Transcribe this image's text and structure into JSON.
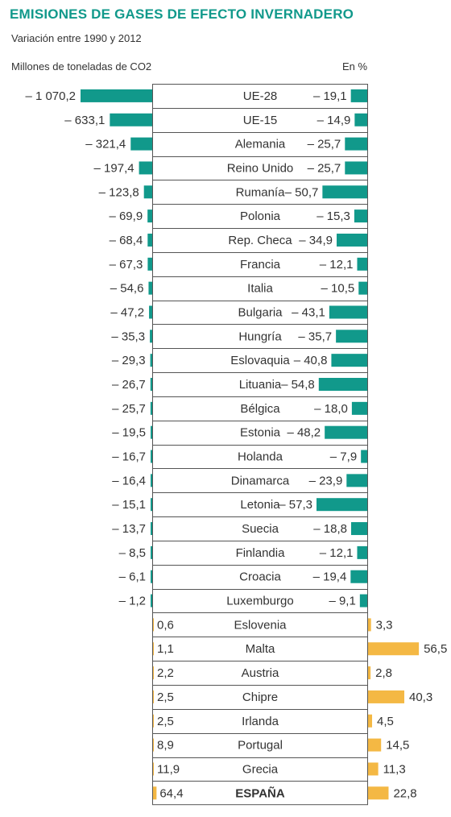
{
  "title": "EMISIONES DE GASES DE EFECTO INVERNADERO",
  "subtitle": "Variación  entre 1990 y 2012",
  "left_header": "Millones de toneladas de CO2",
  "right_header": "En %",
  "colors": {
    "title": "#11998b",
    "negative": "#11998b",
    "positive": "#f4b844",
    "text": "#333333",
    "box_border": "#555555"
  },
  "chart_data": {
    "type": "bar",
    "title": "EMISIONES DE GASES DE EFECTO INVERNADERO",
    "subtitle": "Variación  entre 1990 y 2012",
    "categories": [
      "UE-28",
      "UE-15",
      "Alemania",
      "Reino Unido",
      "Rumanía",
      "Polonia",
      "Rep. Checa",
      "Francia",
      "Italia",
      "Bulgaria",
      "Hungría",
      "Eslovaquia",
      "Lituania",
      "Bélgica",
      "Estonia",
      "Holanda",
      "Dinamarca",
      "Letonia",
      "Suecia",
      "Finlandia",
      "Croacia",
      "Luxemburgo",
      "Eslovenia",
      "Malta",
      "Austria",
      "Chipre",
      "Irlanda",
      "Portugal",
      "Grecia",
      "ESPAÑA"
    ],
    "series": [
      {
        "name": "Millones de toneladas de CO2",
        "values": [
          -1070.2,
          -633.1,
          -321.4,
          -197.4,
          -123.8,
          -69.9,
          -68.4,
          -67.3,
          -54.6,
          -47.2,
          -35.3,
          -29.3,
          -26.7,
          -25.7,
          -19.5,
          -16.7,
          -16.4,
          -15.1,
          -13.7,
          -8.5,
          -6.1,
          -1.2,
          0.6,
          1.1,
          2.2,
          2.5,
          2.5,
          8.9,
          11.9,
          64.4
        ],
        "labels": [
          "– 1 070,2",
          "– 633,1",
          "– 321,4",
          "– 197,4",
          "– 123,8",
          "– 69,9",
          "– 68,4",
          "– 67,3",
          "– 54,6",
          "– 47,2",
          "– 35,3",
          "– 29,3",
          "– 26,7",
          "– 25,7",
          "– 19,5",
          "– 16,7",
          "– 16,4",
          "– 15,1",
          "– 13,7",
          "– 8,5",
          "– 6,1",
          "– 1,2",
          "0,6",
          "1,1",
          "2,2",
          "2,5",
          "2,5",
          "8,9",
          "11,9",
          "64,4"
        ]
      },
      {
        "name": "En %",
        "values": [
          -19.1,
          -14.9,
          -25.7,
          -25.7,
          -50.7,
          -15.3,
          -34.9,
          -12.1,
          -10.5,
          -43.1,
          -35.7,
          -40.8,
          -54.8,
          -18.0,
          -48.2,
          -7.9,
          -23.9,
          -57.3,
          -18.8,
          -12.1,
          -19.4,
          -9.1,
          3.3,
          56.5,
          2.8,
          40.3,
          4.5,
          14.5,
          11.3,
          22.8
        ],
        "labels": [
          "– 19,1",
          "– 14,9",
          "– 25,7",
          "– 25,7",
          "– 50,7",
          "– 15,3",
          "– 34,9",
          "– 12,1",
          "– 10,5",
          "– 43,1",
          "– 35,7",
          "– 40,8",
          "– 54,8",
          "– 18,0",
          "– 48,2",
          "– 7,9",
          "– 23,9",
          "– 57,3",
          "– 18,8",
          "– 12,1",
          "– 19,4",
          "– 9,1",
          "3,3",
          "56,5",
          "2,8",
          "40,3",
          "4,5",
          "14,5",
          "11,3",
          "22,8"
        ]
      }
    ],
    "highlight_category": "ESPAÑA"
  }
}
